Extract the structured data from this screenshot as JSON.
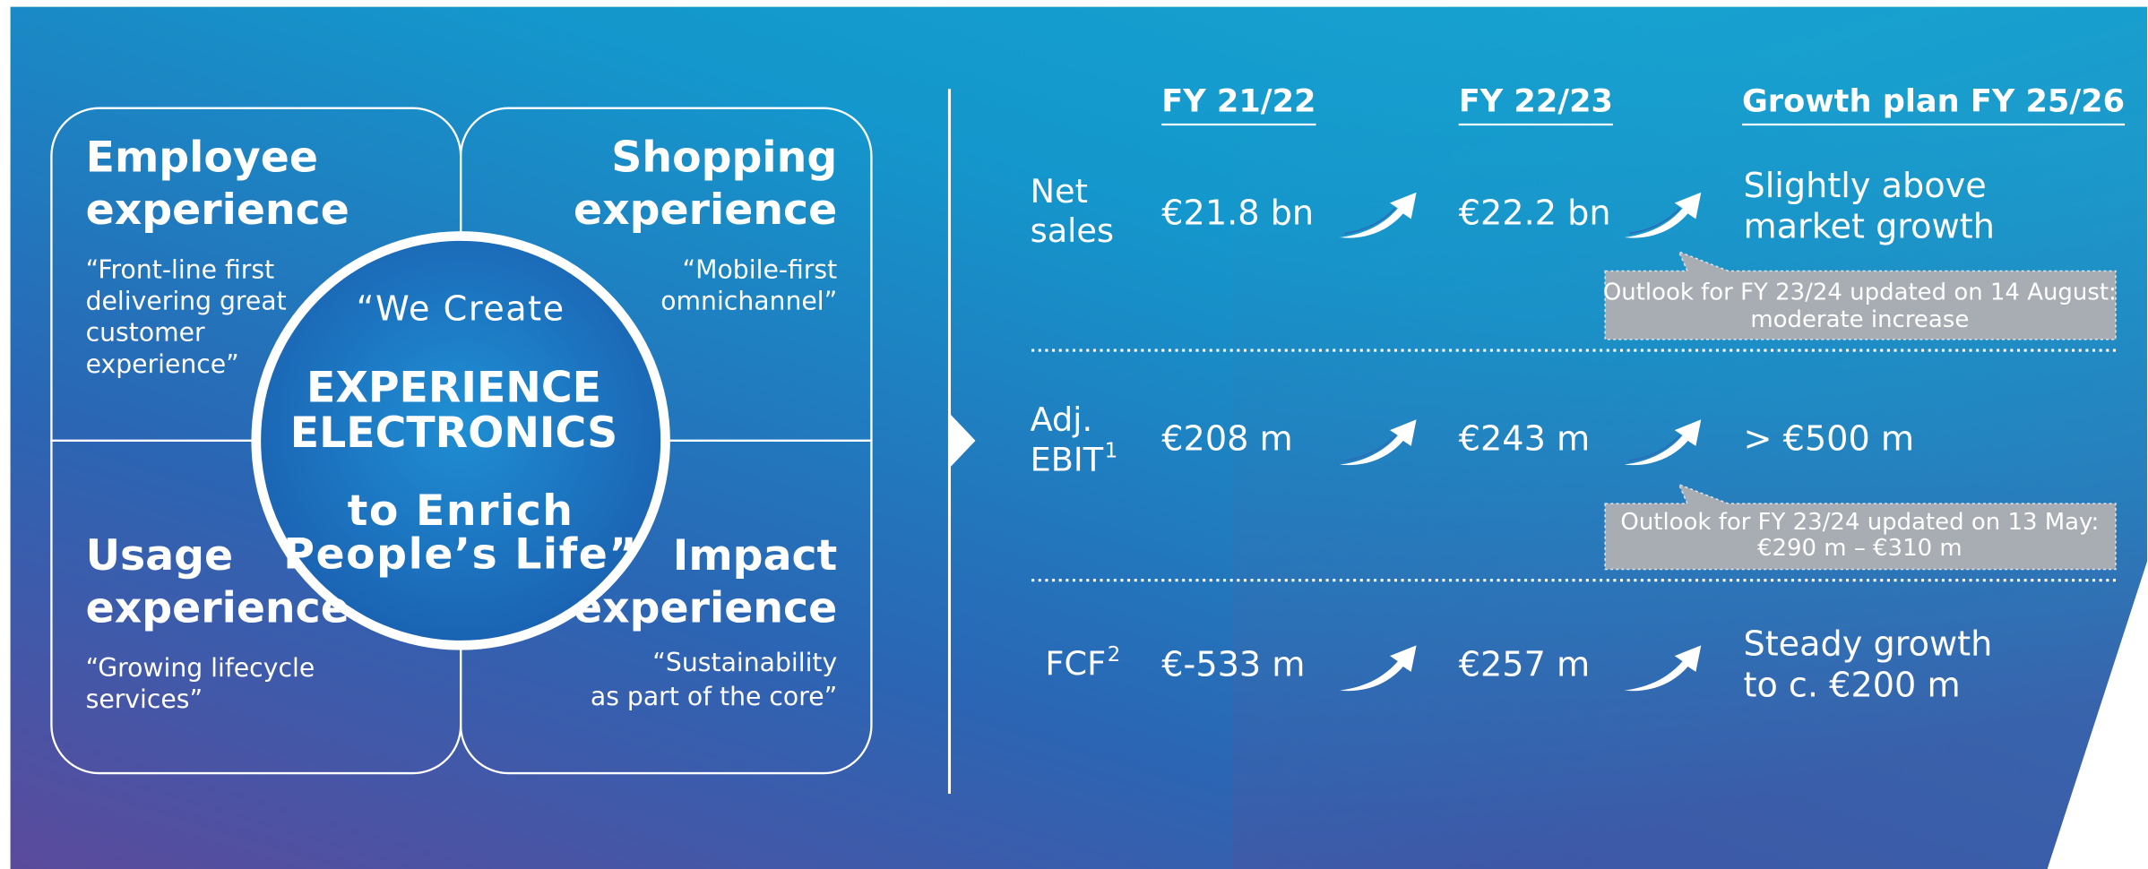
{
  "quadrants": [
    {
      "title": [
        "Employee",
        "experience"
      ],
      "quote": [
        "“Front-line first",
        "delivering great",
        "customer",
        "experience”"
      ]
    },
    {
      "title": [
        "Shopping",
        "experience"
      ],
      "quote": [
        "“Mobile-first",
        "omnichannel”"
      ]
    },
    {
      "title": [
        "Usage",
        "experience"
      ],
      "quote": [
        "“Growing lifecycle",
        "services”"
      ]
    },
    {
      "title": [
        "Impact",
        "experience"
      ],
      "quote": [
        "“Sustainability",
        "as part of the core”"
      ]
    }
  ],
  "center": {
    "top": "“We Create",
    "main": [
      "EXPERIENCE",
      "ELECTRONICS"
    ],
    "bottom": [
      "to Enrich",
      "People’s Life”"
    ]
  },
  "table": {
    "headers": [
      "FY 21/22",
      "FY 22/23",
      "Growth plan FY 25/26"
    ],
    "rows": [
      {
        "label": [
          "Net",
          "sales"
        ],
        "values": [
          "€21.8 bn",
          "€22.2 bn"
        ],
        "plan": [
          "Slightly above",
          "market growth"
        ],
        "note": [
          "Outlook for FY 23/24 updated on 14 August:",
          "moderate increase"
        ]
      },
      {
        "label": [
          "Adj.",
          "EBIT"
        ],
        "footnote": "1",
        "values": [
          "€208 m",
          "€243 m"
        ],
        "plan": [
          "> €500 m"
        ],
        "note": [
          "Outlook for FY 23/24 updated on 13 May:",
          "€290 m – €310 m"
        ]
      },
      {
        "label": [
          "FCF"
        ],
        "footnote": "2",
        "values": [
          "€-533 m",
          "€257 m"
        ],
        "plan": [
          "Steady growth",
          "to c. €200 m"
        ]
      }
    ]
  }
}
